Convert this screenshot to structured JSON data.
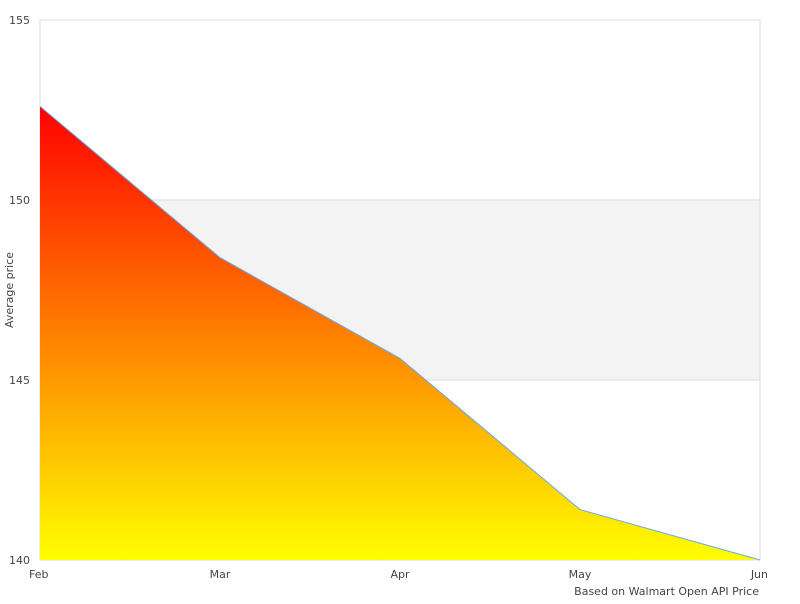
{
  "chart_data": {
    "type": "area",
    "title": "",
    "xlabel": "",
    "ylabel": "Average price",
    "caption": "Based on Walmart Open API Price",
    "categories": [
      "Feb",
      "Mar",
      "Apr",
      "May",
      "Jun"
    ],
    "values": [
      152.6,
      148.4,
      145.6,
      141.4,
      140.0
    ],
    "ylim": [
      140,
      155
    ],
    "yticks": [
      140,
      145,
      150,
      155
    ],
    "grid": "alternating bands",
    "band_color": "#f3f3f3",
    "line_color": "#6aa8e8",
    "fill_gradient": [
      "#ff0000",
      "#ffff00"
    ]
  }
}
